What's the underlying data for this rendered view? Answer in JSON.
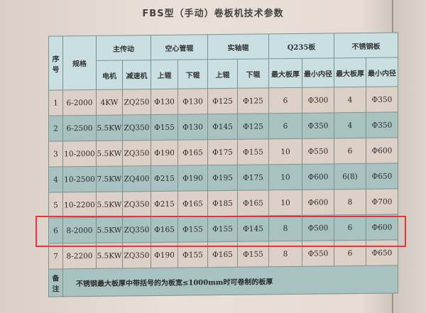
{
  "title": "FBS型（手动）卷板机技术参数",
  "headers": {
    "seq": "序号",
    "spec": "规格",
    "main_drive": "主传动",
    "motor": "电机",
    "reducer": "减速机",
    "hollow_roll": "空心管辊",
    "solid_roll": "实轴辊",
    "upper": "上辊",
    "lower": "下辊",
    "q235": "Q235板",
    "stainless": "不锈钢板",
    "max_thickness": "最大板厚",
    "min_diameter": "最小内径"
  },
  "rows": [
    [
      "1",
      "6-2000",
      "4KW",
      "ZQ250",
      "Φ130",
      "Φ130",
      "Φ125",
      "Φ125",
      "6",
      "Φ300",
      "4",
      "Φ350"
    ],
    [
      "2",
      "6-2500",
      "5.5KW",
      "ZQ350",
      "Φ155",
      "Φ130",
      "Φ145",
      "Φ125",
      "6",
      "Φ350",
      "4",
      "Φ350"
    ],
    [
      "3",
      "10-2000",
      "5.5KW",
      "ZQ350",
      "Φ190",
      "Φ165",
      "Φ175",
      "Φ155",
      "10",
      "Φ550",
      "6",
      "Φ600"
    ],
    [
      "4",
      "10-2500",
      "7.5KW",
      "ZQ400",
      "Φ215",
      "Φ190",
      "Φ195",
      "Φ175",
      "10",
      "Φ600",
      "6(8)",
      "Φ650"
    ],
    [
      "5",
      "10-2200",
      "5.5KW",
      "ZQ350",
      "Φ215",
      "Φ165",
      "Φ185",
      "Φ165",
      "10",
      "Φ600",
      "8",
      "Φ700"
    ],
    [
      "6",
      "8-2000",
      "5.5KW",
      "ZQ350",
      "Φ165",
      "Φ155",
      "Φ155",
      "Φ145",
      "8",
      "Φ500",
      "6",
      "Φ600"
    ],
    [
      "7",
      "8-2200",
      "5.5KW",
      "ZQ350",
      "Φ190",
      "Φ155",
      "Φ165",
      "Φ155",
      "8",
      "Φ550",
      "6",
      "Φ650"
    ]
  ],
  "note": {
    "label": "备注",
    "text": "不锈钢最大板厚中带括号的为板宽≤1000mm时可卷制的板厚"
  },
  "highlight": {
    "row": "6",
    "color": "#e8353a"
  }
}
